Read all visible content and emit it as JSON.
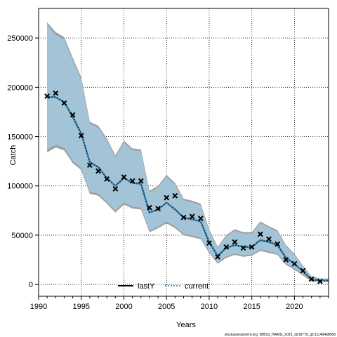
{
  "chart_data": {
    "type": "line",
    "title": "",
    "xlabel": "Years",
    "ylabel": "Catch",
    "xlim": [
      1990,
      2024
    ],
    "ylim": [
      -12000,
      280000
    ],
    "x_ticks": [
      1990,
      1995,
      2000,
      2005,
      2010,
      2015,
      2020
    ],
    "y_ticks": [
      0,
      50000,
      100000,
      150000,
      200000,
      250000
    ],
    "x_tick_labels": [
      "1990",
      "1995",
      "2000",
      "2005",
      "2010",
      "2015",
      "2020"
    ],
    "y_tick_labels": [
      "0",
      "50000",
      "100000",
      "150000",
      "200000",
      "250000"
    ],
    "grid": true,
    "legend_position": "bottom-center",
    "colors": {
      "band_fill": "#a3c3d6",
      "band_outer": "#9e9e9e",
      "lastY_line": "#000000",
      "current_line": "#1f3f5f",
      "current_dots": "#2a9fd6",
      "observed_marker": "#000000"
    },
    "years": [
      1991,
      1992,
      1993,
      1994,
      1995,
      1996,
      1997,
      1998,
      1999,
      2000,
      2001,
      2002,
      2003,
      2004,
      2005,
      2006,
      2007,
      2008,
      2009,
      2010,
      2011,
      2012,
      2013,
      2014,
      2015,
      2016,
      2017,
      2018,
      2019,
      2020,
      2021,
      2022,
      2023,
      2024
    ],
    "series": [
      {
        "name": "lastY",
        "values": [
          190000,
          190000,
          185000,
          170000,
          153000,
          124000,
          119000,
          108000,
          100000,
          108000,
          103000,
          102000,
          73000,
          76000,
          83000,
          76000,
          68000,
          66000,
          64000,
          43000,
          29000,
          37000,
          40000,
          38000,
          38000,
          45000,
          43000,
          40000,
          27000,
          21000,
          13000,
          5000,
          4000,
          4000
        ]
      },
      {
        "name": "current",
        "values": [
          190000,
          190000,
          185000,
          170000,
          153000,
          124000,
          119000,
          108000,
          100000,
          108000,
          103000,
          102000,
          73000,
          76000,
          83000,
          76000,
          68000,
          66000,
          64000,
          43000,
          29000,
          37000,
          40000,
          38000,
          38000,
          45000,
          43000,
          40000,
          27000,
          21000,
          13000,
          5000,
          4000,
          4000
        ]
      }
    ],
    "band": {
      "upper": [
        266000,
        256000,
        251000,
        230000,
        210000,
        165000,
        161000,
        148000,
        131000,
        146000,
        138000,
        137000,
        95000,
        100000,
        111000,
        103000,
        87000,
        85000,
        82000,
        56000,
        38000,
        50000,
        56000,
        53000,
        53000,
        64000,
        59000,
        55000,
        40000,
        31000,
        19000,
        8000,
        6000,
        6000
      ],
      "lower": [
        134000,
        139000,
        136000,
        123000,
        116000,
        92000,
        90000,
        82000,
        73000,
        81000,
        77000,
        76000,
        53000,
        57000,
        62000,
        57000,
        50000,
        48000,
        46000,
        32000,
        21000,
        27000,
        30000,
        28000,
        29000,
        34000,
        32000,
        30000,
        20000,
        15000,
        9000,
        3000,
        2500,
        2500
      ]
    },
    "observed": {
      "x": [
        1991,
        1992,
        1993,
        1994,
        1995,
        1996,
        1997,
        1998,
        1999,
        2000,
        2001,
        2002,
        2003,
        2004,
        2005,
        2006,
        2007,
        2008,
        2009,
        2010,
        2011,
        2012,
        2013,
        2014,
        2015,
        2016,
        2017,
        2018,
        2019,
        2020,
        2021,
        2022,
        2023
      ],
      "y": [
        191000,
        194000,
        184000,
        172000,
        151000,
        121000,
        115000,
        107000,
        97000,
        109000,
        105000,
        105000,
        78000,
        77000,
        88000,
        90000,
        68000,
        69000,
        67000,
        42000,
        28000,
        38000,
        43000,
        37000,
        38000,
        51000,
        46000,
        41000,
        25000,
        21000,
        14000,
        5500,
        3000
      ]
    }
  },
  "footnote": "stockassessment.org, WBSS_HAWG_2025_str18775, git:1cc464b8068"
}
